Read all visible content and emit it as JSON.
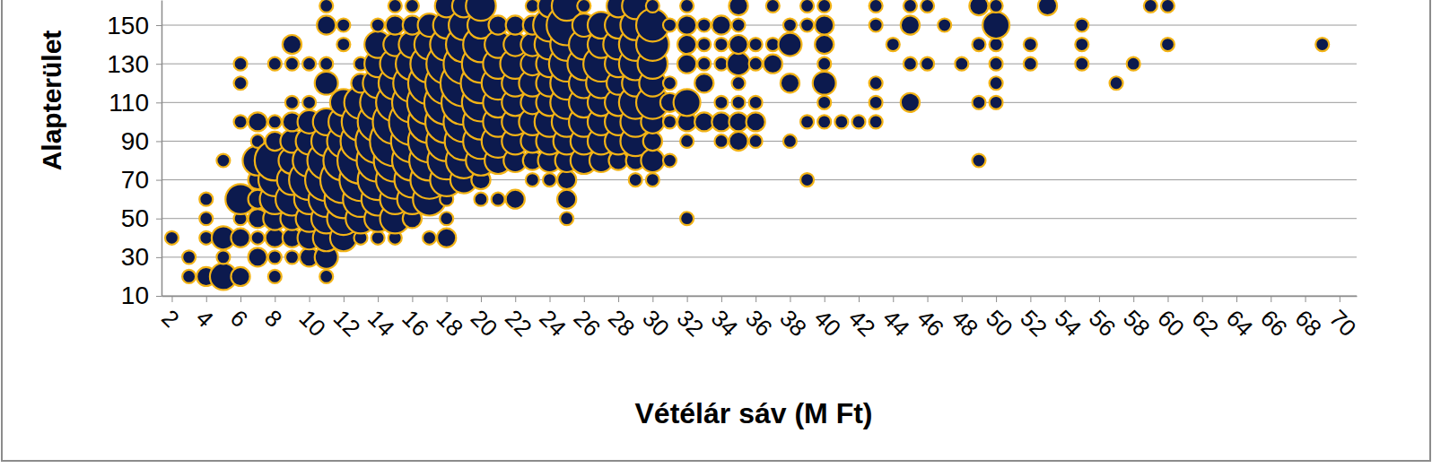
{
  "chart_data": {
    "type": "bubble",
    "x_label": "Vétélár sáv (M Ft)",
    "y_label": "Alapterület",
    "color": "#0c1a4e",
    "grid": true,
    "xlim": [
      1.4,
      71
    ],
    "ylim": [
      10,
      163
    ],
    "xticks": [
      2,
      4,
      6,
      8,
      10,
      12,
      14,
      16,
      18,
      20,
      22,
      24,
      26,
      28,
      30,
      32,
      34,
      36,
      38,
      40,
      42,
      44,
      46,
      48,
      50,
      52,
      54,
      56,
      58,
      60,
      62,
      64,
      66,
      68,
      70
    ],
    "yticks": [
      10,
      30,
      50,
      70,
      90,
      110,
      130,
      150
    ],
    "x": [
      2,
      3,
      3,
      4,
      4,
      4,
      4,
      5,
      5,
      5,
      5,
      6,
      6,
      6,
      6,
      6,
      6,
      6,
      7,
      7,
      7,
      7,
      7,
      7,
      7,
      7,
      8,
      8,
      8,
      8,
      8,
      8,
      8,
      8,
      8,
      8,
      9,
      9,
      9,
      9,
      9,
      9,
      9,
      9,
      9,
      9,
      9,
      10,
      10,
      10,
      10,
      10,
      10,
      10,
      10,
      10,
      10,
      11,
      11,
      11,
      11,
      11,
      11,
      11,
      11,
      11,
      11,
      11,
      11,
      11,
      12,
      12,
      12,
      12,
      12,
      12,
      12,
      12,
      12,
      12,
      13,
      13,
      13,
      13,
      13,
      13,
      13,
      13,
      13,
      13,
      14,
      14,
      14,
      14,
      14,
      14,
      14,
      14,
      14,
      14,
      14,
      14,
      15,
      15,
      15,
      15,
      15,
      15,
      15,
      15,
      15,
      15,
      15,
      15,
      15,
      16,
      16,
      16,
      16,
      16,
      16,
      16,
      16,
      16,
      16,
      16,
      16,
      17,
      17,
      17,
      17,
      17,
      17,
      17,
      17,
      17,
      17,
      17,
      18,
      18,
      18,
      18,
      18,
      18,
      18,
      18,
      18,
      18,
      18,
      18,
      18,
      19,
      19,
      19,
      19,
      19,
      19,
      19,
      19,
      19,
      19,
      20,
      20,
      20,
      20,
      20,
      20,
      20,
      20,
      20,
      20,
      20,
      21,
      21,
      21,
      21,
      21,
      21,
      21,
      21,
      21,
      22,
      22,
      22,
      22,
      22,
      22,
      22,
      22,
      22,
      23,
      23,
      23,
      23,
      23,
      23,
      23,
      23,
      23,
      23,
      24,
      24,
      24,
      24,
      24,
      24,
      24,
      24,
      24,
      24,
      25,
      25,
      25,
      25,
      25,
      25,
      25,
      25,
      25,
      25,
      25,
      25,
      26,
      26,
      26,
      26,
      26,
      26,
      26,
      26,
      26,
      27,
      27,
      27,
      27,
      27,
      27,
      27,
      27,
      28,
      28,
      28,
      28,
      28,
      28,
      28,
      28,
      28,
      29,
      29,
      29,
      29,
      29,
      29,
      29,
      29,
      29,
      29,
      30,
      30,
      30,
      30,
      30,
      30,
      30,
      30,
      30,
      30,
      31,
      31,
      31,
      31,
      31,
      32,
      32,
      32,
      32,
      32,
      32,
      32,
      32,
      33,
      33,
      33,
      33,
      33,
      34,
      34,
      34,
      34,
      34,
      34,
      35,
      35,
      35,
      35,
      35,
      35,
      35,
      35,
      36,
      36,
      36,
      36,
      36,
      37,
      37,
      37,
      38,
      38,
      38,
      38,
      39,
      39,
      39,
      39,
      40,
      40,
      40,
      40,
      40,
      40,
      40,
      41,
      42,
      43,
      43,
      43,
      43,
      43,
      44,
      45,
      45,
      45,
      45,
      46,
      46,
      47,
      48,
      49,
      49,
      49,
      49,
      50,
      50,
      50,
      50,
      50,
      50,
      52,
      52,
      53,
      55,
      55,
      55,
      57,
      58,
      59,
      60,
      60,
      69
    ],
    "y": [
      40,
      20,
      30,
      20,
      40,
      50,
      60,
      20,
      30,
      40,
      80,
      20,
      40,
      50,
      60,
      100,
      120,
      130,
      30,
      40,
      50,
      60,
      70,
      80,
      90,
      100,
      20,
      30,
      40,
      50,
      60,
      70,
      80,
      90,
      100,
      130,
      30,
      40,
      50,
      60,
      70,
      80,
      90,
      100,
      110,
      130,
      140,
      30,
      40,
      50,
      60,
      70,
      80,
      90,
      100,
      110,
      130,
      20,
      30,
      40,
      50,
      60,
      70,
      80,
      90,
      100,
      120,
      130,
      150,
      160,
      40,
      50,
      60,
      70,
      80,
      90,
      100,
      110,
      140,
      150,
      40,
      50,
      60,
      70,
      80,
      90,
      100,
      110,
      120,
      130,
      40,
      50,
      60,
      70,
      80,
      90,
      100,
      110,
      120,
      130,
      140,
      150,
      40,
      50,
      60,
      70,
      80,
      90,
      100,
      110,
      120,
      130,
      140,
      150,
      160,
      50,
      60,
      70,
      80,
      90,
      100,
      110,
      120,
      130,
      140,
      150,
      160,
      40,
      60,
      70,
      80,
      90,
      100,
      110,
      120,
      130,
      140,
      150,
      40,
      50,
      60,
      70,
      80,
      90,
      100,
      110,
      120,
      130,
      140,
      150,
      160,
      70,
      80,
      90,
      100,
      110,
      120,
      130,
      140,
      150,
      160,
      60,
      70,
      80,
      90,
      100,
      110,
      120,
      130,
      140,
      150,
      160,
      60,
      80,
      90,
      100,
      110,
      120,
      130,
      140,
      150,
      60,
      80,
      90,
      100,
      110,
      120,
      130,
      140,
      150,
      70,
      80,
      90,
      100,
      110,
      120,
      130,
      140,
      150,
      160,
      70,
      80,
      90,
      100,
      110,
      120,
      130,
      140,
      150,
      160,
      50,
      60,
      70,
      80,
      90,
      100,
      110,
      120,
      130,
      140,
      150,
      160,
      80,
      90,
      100,
      110,
      120,
      130,
      140,
      150,
      160,
      80,
      90,
      100,
      110,
      120,
      130,
      140,
      150,
      80,
      90,
      100,
      110,
      120,
      130,
      140,
      150,
      160,
      70,
      80,
      90,
      100,
      110,
      120,
      130,
      140,
      150,
      160,
      70,
      80,
      90,
      100,
      110,
      120,
      130,
      140,
      150,
      160,
      80,
      100,
      110,
      120,
      150,
      50,
      90,
      100,
      110,
      130,
      140,
      150,
      160,
      100,
      120,
      130,
      140,
      150,
      90,
      100,
      110,
      130,
      140,
      150,
      90,
      100,
      110,
      120,
      130,
      140,
      150,
      160,
      90,
      100,
      110,
      130,
      140,
      130,
      140,
      160,
      90,
      120,
      140,
      150,
      70,
      100,
      150,
      160,
      100,
      110,
      120,
      130,
      140,
      150,
      160,
      100,
      100,
      100,
      110,
      120,
      150,
      160,
      140,
      110,
      130,
      150,
      160,
      130,
      160,
      150,
      130,
      80,
      110,
      140,
      160,
      110,
      120,
      130,
      140,
      150,
      160,
      130,
      140,
      160,
      130,
      140,
      150,
      120,
      130,
      160,
      140,
      160,
      140
    ],
    "sizes": [
      1,
      1,
      1,
      2,
      1,
      1,
      1,
      4,
      1,
      3,
      1,
      2,
      2,
      1,
      5,
      1,
      1,
      1,
      2,
      1,
      2,
      2,
      2,
      5,
      1,
      2,
      1,
      1,
      2,
      3,
      5,
      6,
      9,
      2,
      1,
      1,
      1,
      2,
      3,
      6,
      5,
      4,
      3,
      2,
      1,
      1,
      2,
      2,
      3,
      4,
      5,
      9,
      6,
      4,
      3,
      1,
      1,
      1,
      3,
      4,
      5,
      7,
      10,
      8,
      5,
      4,
      3,
      1,
      2,
      1,
      4,
      6,
      8,
      12,
      9,
      6,
      5,
      4,
      1,
      1,
      1,
      5,
      7,
      10,
      12,
      9,
      8,
      6,
      2,
      1,
      1,
      4,
      6,
      9,
      10,
      11,
      9,
      7,
      5,
      4,
      4,
      1,
      1,
      5,
      5,
      8,
      10,
      14,
      11,
      8,
      6,
      5,
      3,
      2,
      1,
      2,
      5,
      7,
      9,
      10,
      12,
      9,
      8,
      6,
      4,
      2,
      1,
      1,
      6,
      8,
      9,
      10,
      10,
      11,
      10,
      8,
      5,
      3,
      2,
      1,
      1,
      6,
      8,
      9,
      10,
      11,
      10,
      9,
      6,
      4,
      3,
      4,
      7,
      8,
      9,
      11,
      12,
      9,
      7,
      5,
      3,
      1,
      2,
      5,
      7,
      7,
      8,
      9,
      8,
      7,
      4,
      5,
      1,
      4,
      6,
      5,
      5,
      6,
      5,
      4,
      2,
      2,
      3,
      4,
      4,
      4,
      4,
      5,
      3,
      2,
      1,
      2,
      3,
      4,
      3,
      4,
      3,
      3,
      2,
      1,
      1,
      3,
      4,
      5,
      4,
      4,
      4,
      5,
      6,
      3,
      1,
      2,
      2,
      3,
      4,
      5,
      6,
      6,
      7,
      6,
      9,
      5,
      4,
      4,
      5,
      5,
      5,
      6,
      5,
      3,
      1,
      3,
      4,
      4,
      4,
      5,
      7,
      4,
      4,
      2,
      4,
      4,
      4,
      3,
      4,
      5,
      4,
      3,
      1,
      2,
      5,
      5,
      6,
      4,
      6,
      6,
      5,
      4,
      1,
      3,
      2,
      3,
      6,
      4,
      5,
      6,
      6,
      1,
      1,
      1,
      2,
      1,
      1,
      1,
      1,
      2,
      4,
      2,
      2,
      2,
      1,
      2,
      2,
      1,
      1,
      1,
      1,
      2,
      1,
      1,
      1,
      2,
      2,
      2,
      1,
      1,
      3,
      2,
      1,
      2,
      1,
      2,
      1,
      1,
      1,
      2,
      1,
      1,
      1,
      2,
      3,
      1,
      1,
      1,
      1,
      1,
      1,
      1,
      3,
      1,
      2,
      2,
      1,
      1,
      1,
      1,
      1,
      1,
      1,
      1,
      1,
      2,
      1,
      2,
      1,
      1,
      1,
      1,
      1,
      1,
      1,
      1,
      2,
      1,
      1,
      1,
      1,
      4,
      1,
      1,
      1,
      2,
      1,
      1,
      1,
      1,
      1,
      1,
      1,
      1,
      1
    ]
  }
}
